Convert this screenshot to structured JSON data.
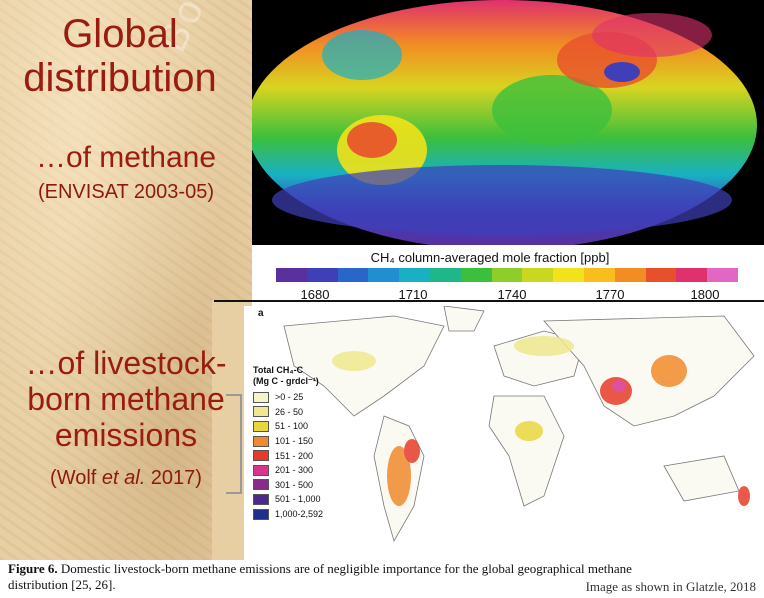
{
  "slide": {
    "title_line1": "Global",
    "title_line2": "distribution",
    "subtitle1": "…of methane",
    "source1": "(ENVISAT 2003-05)",
    "subtitle2_line1": "…of livestock-",
    "subtitle2_line2": "born methane",
    "subtitle2_line3": "emissions",
    "source2_pre": "(Wolf ",
    "source2_italic": "et al.",
    "source2_post": " 2017)",
    "watermark": "Bosista Cal"
  },
  "satellite_map": {
    "legend_title": "CH₄ column-averaged mole fraction [ppb]",
    "ticks": [
      "1680",
      "1710",
      "1740",
      "1770",
      "1800"
    ],
    "scale_colors": [
      "#5a2f9e",
      "#3f3fb8",
      "#2a66c9",
      "#1f8fd1",
      "#19b0c4",
      "#1fb78a",
      "#3cbf3c",
      "#8fce28",
      "#c9d81e",
      "#f1e21a",
      "#f8bf1c",
      "#f28d23",
      "#e8502c",
      "#e0306e",
      "#e266c4"
    ]
  },
  "livestock_map": {
    "panel_label": "a",
    "legend_title_line1": "Total CH₄-C",
    "legend_title_line2": "(Mg C - grdcl⁻¹)",
    "classes": [
      {
        "label": ">0 - 25",
        "color": "#f6f3c8"
      },
      {
        "label": "26 - 50",
        "color": "#efe88e"
      },
      {
        "label": "51 - 100",
        "color": "#e9d83c"
      },
      {
        "label": "101 - 150",
        "color": "#f08a2c"
      },
      {
        "label": "151 - 200",
        "color": "#e63b2a"
      },
      {
        "label": "201 - 300",
        "color": "#d8358c"
      },
      {
        "label": "301 - 500",
        "color": "#8c2a8c"
      },
      {
        "label": "501 - 1,000",
        "color": "#4a2a8c"
      },
      {
        "label": "1,000-2,592",
        "color": "#1e2f8c"
      }
    ]
  },
  "caption": {
    "figure_label": "Figure 6.",
    "text_line1": " Domestic livestock-born methane emissions are of negligible importance for the global geographical methane",
    "text_line2": "distribution [25, 26].",
    "credit": "Image as shown in Glatzle, 2018"
  }
}
